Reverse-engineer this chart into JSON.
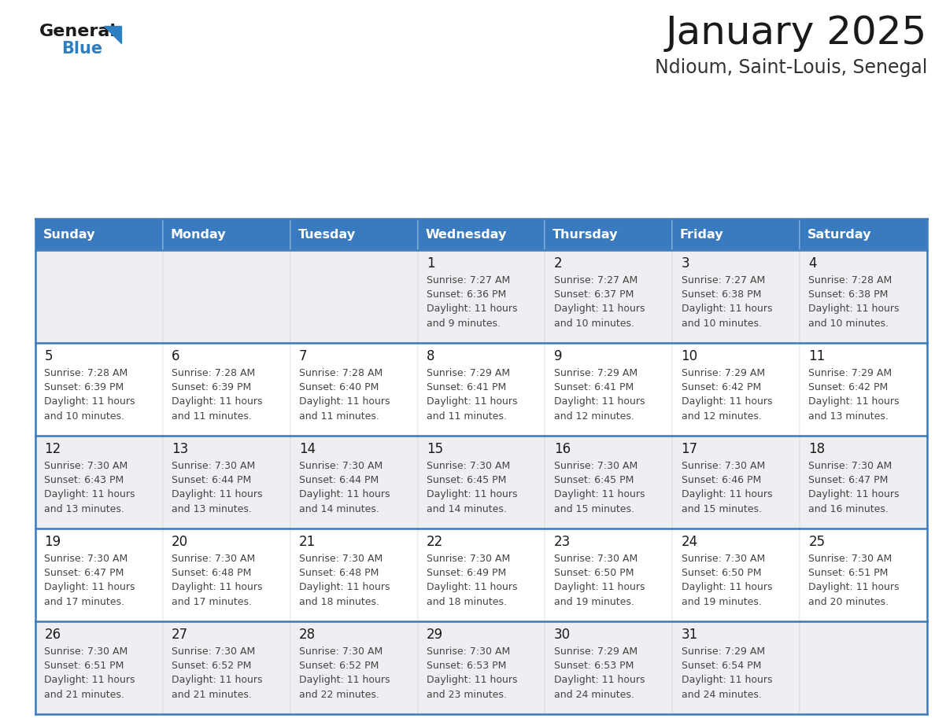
{
  "title": "January 2025",
  "subtitle": "Ndioum, Saint-Louis, Senegal",
  "days_of_week": [
    "Sunday",
    "Monday",
    "Tuesday",
    "Wednesday",
    "Thursday",
    "Friday",
    "Saturday"
  ],
  "header_bg_color": "#3a7bbf",
  "header_text_color": "#ffffff",
  "row_bg_colors": [
    "#eeeff2",
    "#ffffff",
    "#eeeff2",
    "#ffffff",
    "#eeeff2"
  ],
  "border_color": "#3a7bbf",
  "title_color": "#1a1a1a",
  "subtitle_color": "#333333",
  "day_num_color": "#1a1a1a",
  "cell_text_color": "#444444",
  "logo_general_color": "#1a1a1a",
  "logo_blue_color": "#2e7fc1",
  "logo_triangle_color": "#2e7fc1",
  "calendar_data": [
    {
      "day": 1,
      "col": 3,
      "row": 0,
      "sunrise": "7:27 AM",
      "sunset": "6:36 PM",
      "daylight": "11 hours and 9 minutes."
    },
    {
      "day": 2,
      "col": 4,
      "row": 0,
      "sunrise": "7:27 AM",
      "sunset": "6:37 PM",
      "daylight": "11 hours and 10 minutes."
    },
    {
      "day": 3,
      "col": 5,
      "row": 0,
      "sunrise": "7:27 AM",
      "sunset": "6:38 PM",
      "daylight": "11 hours and 10 minutes."
    },
    {
      "day": 4,
      "col": 6,
      "row": 0,
      "sunrise": "7:28 AM",
      "sunset": "6:38 PM",
      "daylight": "11 hours and 10 minutes."
    },
    {
      "day": 5,
      "col": 0,
      "row": 1,
      "sunrise": "7:28 AM",
      "sunset": "6:39 PM",
      "daylight": "11 hours and 10 minutes."
    },
    {
      "day": 6,
      "col": 1,
      "row": 1,
      "sunrise": "7:28 AM",
      "sunset": "6:39 PM",
      "daylight": "11 hours and 11 minutes."
    },
    {
      "day": 7,
      "col": 2,
      "row": 1,
      "sunrise": "7:28 AM",
      "sunset": "6:40 PM",
      "daylight": "11 hours and 11 minutes."
    },
    {
      "day": 8,
      "col": 3,
      "row": 1,
      "sunrise": "7:29 AM",
      "sunset": "6:41 PM",
      "daylight": "11 hours and 11 minutes."
    },
    {
      "day": 9,
      "col": 4,
      "row": 1,
      "sunrise": "7:29 AM",
      "sunset": "6:41 PM",
      "daylight": "11 hours and 12 minutes."
    },
    {
      "day": 10,
      "col": 5,
      "row": 1,
      "sunrise": "7:29 AM",
      "sunset": "6:42 PM",
      "daylight": "11 hours and 12 minutes."
    },
    {
      "day": 11,
      "col": 6,
      "row": 1,
      "sunrise": "7:29 AM",
      "sunset": "6:42 PM",
      "daylight": "11 hours and 13 minutes."
    },
    {
      "day": 12,
      "col": 0,
      "row": 2,
      "sunrise": "7:30 AM",
      "sunset": "6:43 PM",
      "daylight": "11 hours and 13 minutes."
    },
    {
      "day": 13,
      "col": 1,
      "row": 2,
      "sunrise": "7:30 AM",
      "sunset": "6:44 PM",
      "daylight": "11 hours and 13 minutes."
    },
    {
      "day": 14,
      "col": 2,
      "row": 2,
      "sunrise": "7:30 AM",
      "sunset": "6:44 PM",
      "daylight": "11 hours and 14 minutes."
    },
    {
      "day": 15,
      "col": 3,
      "row": 2,
      "sunrise": "7:30 AM",
      "sunset": "6:45 PM",
      "daylight": "11 hours and 14 minutes."
    },
    {
      "day": 16,
      "col": 4,
      "row": 2,
      "sunrise": "7:30 AM",
      "sunset": "6:45 PM",
      "daylight": "11 hours and 15 minutes."
    },
    {
      "day": 17,
      "col": 5,
      "row": 2,
      "sunrise": "7:30 AM",
      "sunset": "6:46 PM",
      "daylight": "11 hours and 15 minutes."
    },
    {
      "day": 18,
      "col": 6,
      "row": 2,
      "sunrise": "7:30 AM",
      "sunset": "6:47 PM",
      "daylight": "11 hours and 16 minutes."
    },
    {
      "day": 19,
      "col": 0,
      "row": 3,
      "sunrise": "7:30 AM",
      "sunset": "6:47 PM",
      "daylight": "11 hours and 17 minutes."
    },
    {
      "day": 20,
      "col": 1,
      "row": 3,
      "sunrise": "7:30 AM",
      "sunset": "6:48 PM",
      "daylight": "11 hours and 17 minutes."
    },
    {
      "day": 21,
      "col": 2,
      "row": 3,
      "sunrise": "7:30 AM",
      "sunset": "6:48 PM",
      "daylight": "11 hours and 18 minutes."
    },
    {
      "day": 22,
      "col": 3,
      "row": 3,
      "sunrise": "7:30 AM",
      "sunset": "6:49 PM",
      "daylight": "11 hours and 18 minutes."
    },
    {
      "day": 23,
      "col": 4,
      "row": 3,
      "sunrise": "7:30 AM",
      "sunset": "6:50 PM",
      "daylight": "11 hours and 19 minutes."
    },
    {
      "day": 24,
      "col": 5,
      "row": 3,
      "sunrise": "7:30 AM",
      "sunset": "6:50 PM",
      "daylight": "11 hours and 19 minutes."
    },
    {
      "day": 25,
      "col": 6,
      "row": 3,
      "sunrise": "7:30 AM",
      "sunset": "6:51 PM",
      "daylight": "11 hours and 20 minutes."
    },
    {
      "day": 26,
      "col": 0,
      "row": 4,
      "sunrise": "7:30 AM",
      "sunset": "6:51 PM",
      "daylight": "11 hours and 21 minutes."
    },
    {
      "day": 27,
      "col": 1,
      "row": 4,
      "sunrise": "7:30 AM",
      "sunset": "6:52 PM",
      "daylight": "11 hours and 21 minutes."
    },
    {
      "day": 28,
      "col": 2,
      "row": 4,
      "sunrise": "7:30 AM",
      "sunset": "6:52 PM",
      "daylight": "11 hours and 22 minutes."
    },
    {
      "day": 29,
      "col": 3,
      "row": 4,
      "sunrise": "7:30 AM",
      "sunset": "6:53 PM",
      "daylight": "11 hours and 23 minutes."
    },
    {
      "day": 30,
      "col": 4,
      "row": 4,
      "sunrise": "7:29 AM",
      "sunset": "6:53 PM",
      "daylight": "11 hours and 24 minutes."
    },
    {
      "day": 31,
      "col": 5,
      "row": 4,
      "sunrise": "7:29 AM",
      "sunset": "6:54 PM",
      "daylight": "11 hours and 24 minutes."
    }
  ],
  "num_rows": 5,
  "num_cols": 7
}
